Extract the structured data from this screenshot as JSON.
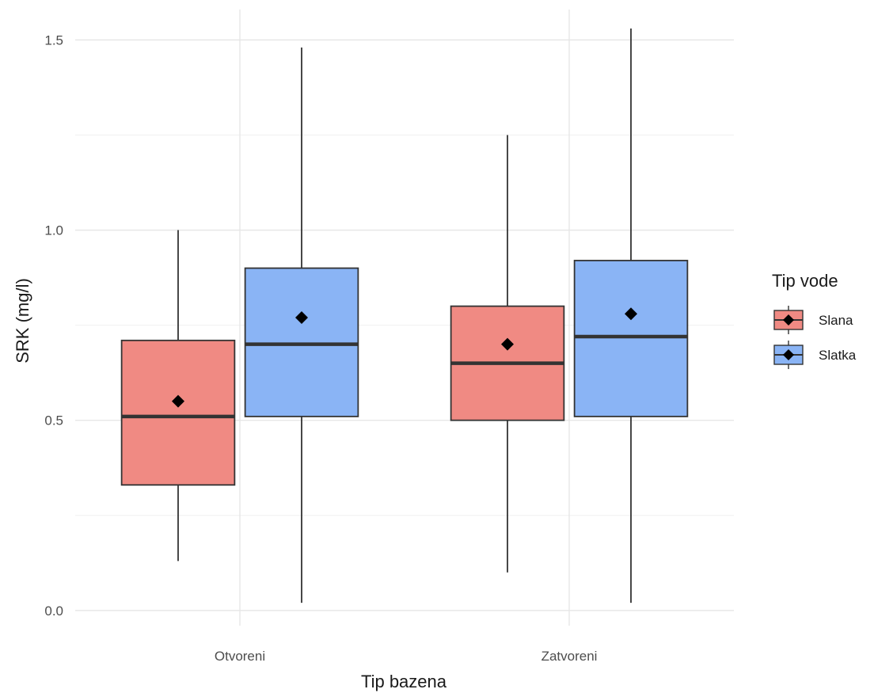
{
  "chart_data": {
    "type": "box",
    "xlabel": "Tip bazena",
    "ylabel": "SRK (mg/l)",
    "categories": [
      "Otvoreni",
      "Zatvoreni"
    ],
    "ylim": [
      -0.04,
      1.58
    ],
    "yticks": [
      0.0,
      0.5,
      1.0,
      1.5
    ],
    "ytick_labels": [
      "0.0",
      "0.5",
      "1.0",
      "1.5"
    ],
    "grid": true,
    "legend": {
      "title": "Tip vode",
      "position": "right"
    },
    "series": [
      {
        "name": "Slana",
        "color": "#F08A83",
        "boxes": [
          {
            "category": "Otvoreni",
            "min": 0.13,
            "q1": 0.33,
            "median": 0.51,
            "q3": 0.71,
            "max": 1.0,
            "mean": 0.55
          },
          {
            "category": "Zatvoreni",
            "min": 0.1,
            "q1": 0.5,
            "median": 0.65,
            "q3": 0.8,
            "max": 1.25,
            "mean": 0.7
          }
        ]
      },
      {
        "name": "Slatka",
        "color": "#8AB4F5",
        "boxes": [
          {
            "category": "Otvoreni",
            "min": 0.02,
            "q1": 0.51,
            "median": 0.7,
            "q3": 0.9,
            "max": 1.48,
            "mean": 0.77
          },
          {
            "category": "Zatvoreni",
            "min": 0.02,
            "q1": 0.51,
            "median": 0.72,
            "q3": 0.92,
            "max": 1.53,
            "mean": 0.78
          }
        ]
      }
    ]
  }
}
